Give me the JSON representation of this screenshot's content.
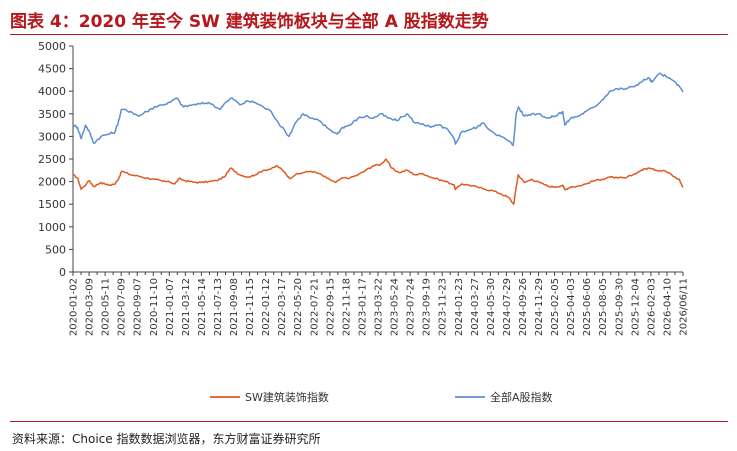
{
  "title": "图表 4：2020 年至今 SW 建筑装饰板块与全部 A 股指数走势",
  "source": "资料来源：Choice 指数数据浏览器，东方财富证券研究所",
  "colors": {
    "accent": "#b5171b",
    "series_sw": "#e05a1f",
    "series_a": "#5b8fd0"
  },
  "chart_data": {
    "type": "line",
    "ylim": [
      0,
      5000
    ],
    "yticks": [
      0,
      500,
      1000,
      1500,
      2000,
      2500,
      3000,
      3500,
      4000,
      4500,
      5000
    ],
    "xlim": [
      "2020-01-02",
      "2026-07-14"
    ],
    "xtick_labels": [
      "2020-01-02",
      "2020-03-09",
      "2020-05-11",
      "2020-07-09",
      "2020-09-07",
      "2020-11-10",
      "2021-01-07",
      "2021-03-12",
      "2021-05-14",
      "2021-07-13",
      "2021-09-08",
      "2021-11-15",
      "2022-01-12",
      "2022-03-17",
      "2022-05-20",
      "2022-07-21",
      "2022-09-15",
      "2022-11-18",
      "2023-01-17",
      "2023-03-22",
      "2023-05-24",
      "2023-07-24",
      "2023-09-19",
      "2023-11-23",
      "2024-01-23",
      "2024-03-27",
      "2024-05-30",
      "2024-07-29",
      "2024-09-26",
      "2024-11-29",
      "2025-02-05",
      "2025-04-03",
      "2025-06-06",
      "2025-08-05",
      "2025-09-30",
      "2025-12-04",
      "2026-02-03",
      "2026-04-10",
      "2026/06/11"
    ],
    "legend_position": "bottom",
    "series": [
      {
        "name": "SW建筑装饰指数",
        "x": [
          "2020-01-02",
          "2020-01-20",
          "2020-02-03",
          "2020-03-06",
          "2020-03-23",
          "2020-04-20",
          "2020-05-20",
          "2020-06-15",
          "2020-07-01",
          "2020-07-10",
          "2020-08-15",
          "2020-09-15",
          "2020-10-15",
          "2020-11-15",
          "2020-12-15",
          "2021-01-15",
          "2021-02-03",
          "2021-02-20",
          "2021-03-15",
          "2021-04-15",
          "2021-05-15",
          "2021-06-15",
          "2021-07-15",
          "2021-08-15",
          "2021-09-10",
          "2021-10-15",
          "2021-11-15",
          "2021-12-15",
          "2022-01-15",
          "2022-02-15",
          "2022-03-10",
          "2022-04-10",
          "2022-04-27",
          "2022-05-20",
          "2022-06-20",
          "2022-07-20",
          "2022-08-20",
          "2022-09-20",
          "2022-10-25",
          "2022-11-20",
          "2022-12-20",
          "2023-01-20",
          "2023-02-20",
          "2023-03-20",
          "2023-04-20",
          "2023-05-10",
          "2023-05-31",
          "2023-06-30",
          "2023-07-31",
          "2023-08-31",
          "2023-09-30",
          "2023-10-31",
          "2023-11-30",
          "2023-12-31",
          "2024-01-31",
          "2024-02-05",
          "2024-02-29",
          "2024-03-31",
          "2024-04-30",
          "2024-05-31",
          "2024-06-30",
          "2024-07-31",
          "2024-08-31",
          "2024-09-20",
          "2024-09-30",
          "2024-10-08",
          "2024-10-31",
          "2024-11-30",
          "2024-12-31",
          "2025-01-31",
          "2025-02-28",
          "2025-03-31",
          "2025-04-08",
          "2025-04-30",
          "2025-05-31",
          "2025-06-30",
          "2025-07-31",
          "2025-08-31",
          "2025-09-30",
          "2025-10-31",
          "2025-11-30",
          "2025-12-31",
          "2026-01-31",
          "2026-02-28",
          "2026-03-31",
          "2026-04-30",
          "2026-05-31",
          "2026-06-30",
          "2026-07-14"
        ],
        "y": [
          2150,
          2080,
          1830,
          2020,
          1890,
          1980,
          1920,
          1950,
          2100,
          2230,
          2150,
          2120,
          2080,
          2050,
          2010,
          1990,
          1950,
          2070,
          2020,
          1990,
          1980,
          2000,
          2020,
          2100,
          2300,
          2150,
          2100,
          2150,
          2250,
          2280,
          2350,
          2200,
          2070,
          2150,
          2200,
          2230,
          2180,
          2080,
          1980,
          2080,
          2080,
          2150,
          2250,
          2350,
          2380,
          2500,
          2300,
          2200,
          2250,
          2150,
          2180,
          2100,
          2050,
          2000,
          1930,
          1820,
          1950,
          1920,
          1880,
          1830,
          1800,
          1730,
          1650,
          1500,
          1880,
          2150,
          1980,
          2050,
          1980,
          1900,
          1880,
          1920,
          1820,
          1880,
          1900,
          1950,
          2020,
          2050,
          2100,
          2080,
          2080,
          2150,
          2250,
          2300,
          2250,
          2250,
          2150,
          2050,
          1870
        ]
      },
      {
        "name": "全部A股指数",
        "x": [
          "2020-01-02",
          "2020-01-20",
          "2020-02-03",
          "2020-02-20",
          "2020-03-06",
          "2020-03-23",
          "2020-04-20",
          "2020-05-20",
          "2020-06-15",
          "2020-07-01",
          "2020-07-10",
          "2020-08-15",
          "2020-09-15",
          "2020-10-15",
          "2020-11-15",
          "2020-12-15",
          "2021-01-15",
          "2021-02-10",
          "2021-03-09",
          "2021-04-15",
          "2021-05-15",
          "2021-06-15",
          "2021-07-28",
          "2021-08-15",
          "2021-09-15",
          "2021-10-15",
          "2021-11-15",
          "2021-12-15",
          "2022-01-15",
          "2022-02-15",
          "2022-03-15",
          "2022-04-26",
          "2022-05-20",
          "2022-06-20",
          "2022-07-20",
          "2022-08-20",
          "2022-09-20",
          "2022-10-31",
          "2022-11-20",
          "2022-12-20",
          "2023-01-20",
          "2023-02-20",
          "2023-03-20",
          "2023-04-20",
          "2023-05-20",
          "2023-06-20",
          "2023-07-31",
          "2023-08-31",
          "2023-09-30",
          "2023-10-31",
          "2023-11-30",
          "2023-12-31",
          "2024-01-31",
          "2024-02-05",
          "2024-02-29",
          "2024-03-31",
          "2024-04-30",
          "2024-05-20",
          "2024-06-30",
          "2024-07-31",
          "2024-08-31",
          "2024-09-18",
          "2024-09-30",
          "2024-10-08",
          "2024-10-31",
          "2024-11-30",
          "2024-12-31",
          "2025-01-31",
          "2025-02-28",
          "2025-03-31",
          "2025-04-08",
          "2025-04-30",
          "2025-05-31",
          "2025-06-30",
          "2025-07-31",
          "2025-08-31",
          "2025-09-30",
          "2025-10-31",
          "2025-11-30",
          "2025-12-31",
          "2026-01-31",
          "2026-02-28",
          "2026-03-15",
          "2026-04-15",
          "2026-05-15",
          "2026-06-15",
          "2026-07-14"
        ],
        "y": [
          3250,
          3200,
          2950,
          3250,
          3100,
          2850,
          3000,
          3050,
          3100,
          3400,
          3600,
          3550,
          3450,
          3550,
          3650,
          3700,
          3750,
          3850,
          3650,
          3700,
          3720,
          3750,
          3600,
          3720,
          3850,
          3700,
          3780,
          3750,
          3650,
          3550,
          3300,
          3000,
          3300,
          3500,
          3400,
          3350,
          3200,
          3050,
          3200,
          3250,
          3400,
          3450,
          3400,
          3500,
          3400,
          3350,
          3500,
          3300,
          3280,
          3200,
          3250,
          3180,
          2950,
          2830,
          3100,
          3150,
          3200,
          3300,
          3100,
          3000,
          2900,
          2800,
          3500,
          3650,
          3450,
          3500,
          3500,
          3400,
          3450,
          3550,
          3250,
          3400,
          3450,
          3550,
          3650,
          3800,
          4000,
          4050,
          4050,
          4100,
          4200,
          4300,
          4200,
          4400,
          4300,
          4200,
          3980
        ]
      }
    ]
  }
}
